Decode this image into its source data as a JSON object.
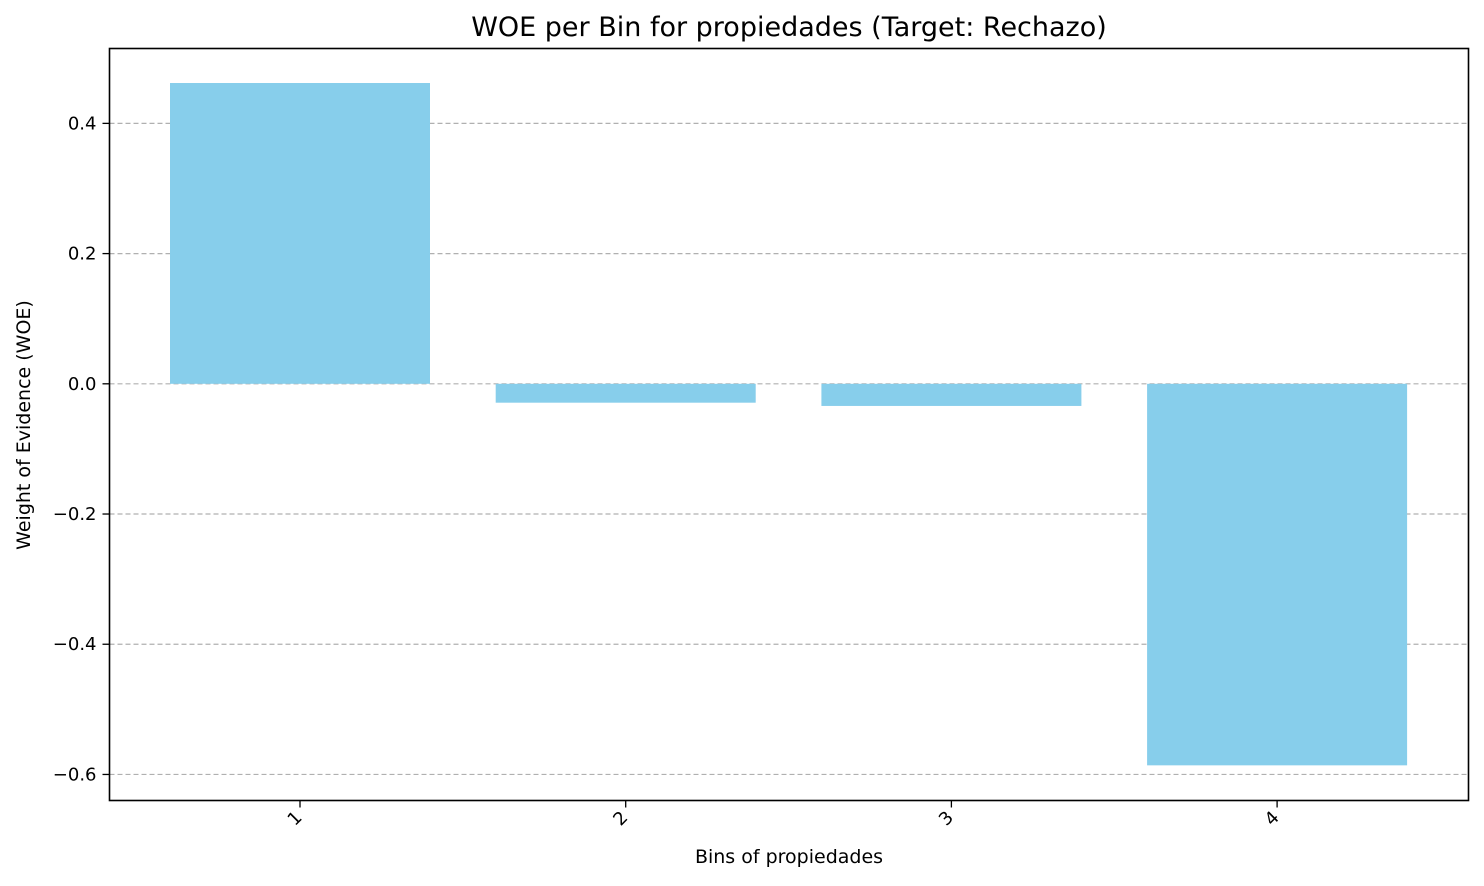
{
  "chart_data": {
    "type": "bar",
    "title": "WOE per Bin for propiedades (Target: Rechazo)",
    "xlabel": "Bins of propiedades",
    "ylabel": "Weight of Evidence (WOE)",
    "categories": [
      "1",
      "2",
      "3",
      "4"
    ],
    "values": [
      0.462,
      -0.029,
      -0.034,
      -0.586
    ],
    "ylim": [
      -0.64,
      0.515
    ],
    "yticks": [
      0.4,
      0.2,
      0.0,
      -0.2,
      -0.4,
      -0.6
    ],
    "ytick_labels": [
      "0.4",
      "0.2",
      "0.0",
      "−0.2",
      "−0.4",
      "−0.6"
    ],
    "xtick_rotation": -45,
    "grid": "y-dashed",
    "legend": "none",
    "colors": {
      "bar": "#87ceeb",
      "grid": "#b0b0b0",
      "axis": "#000000"
    }
  }
}
